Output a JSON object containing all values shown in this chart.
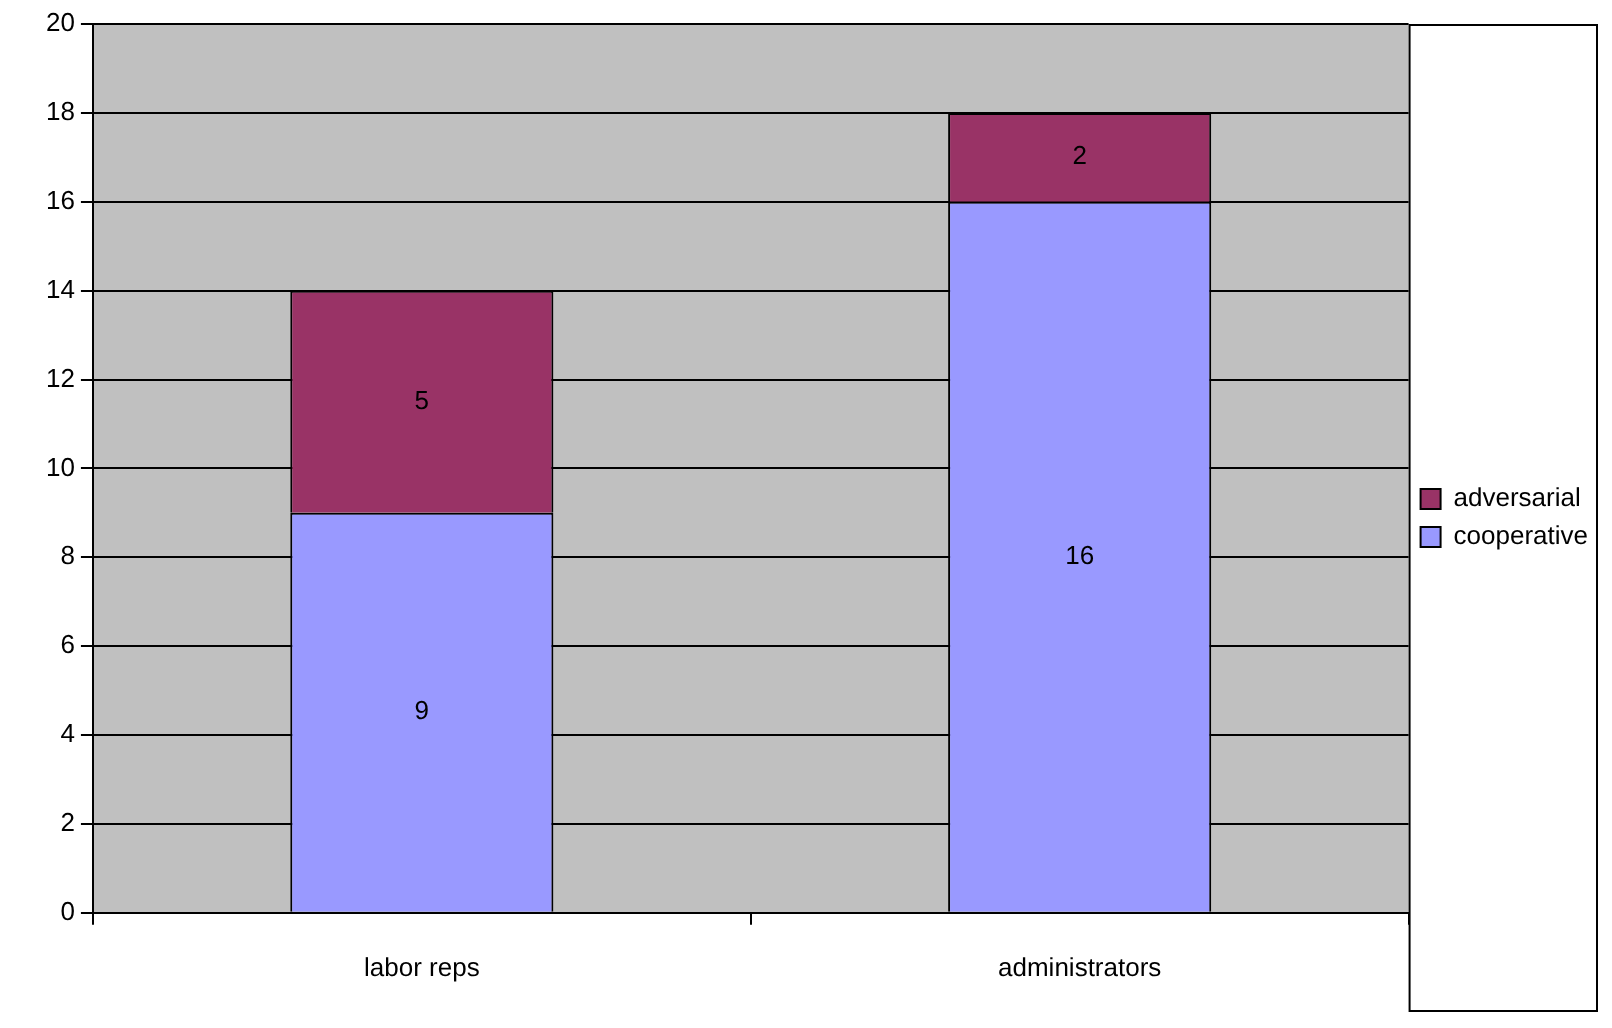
{
  "chart_data": {
    "type": "bar",
    "stacked": true,
    "categories": [
      "labor reps",
      "administrators"
    ],
    "series": [
      {
        "name": "cooperative",
        "color": "#9999ff",
        "values": [
          9,
          16
        ]
      },
      {
        "name": "adversarial",
        "color": "#993366",
        "values": [
          5,
          2
        ]
      }
    ],
    "ylim": [
      0,
      20
    ],
    "yticks": [
      0,
      2,
      4,
      6,
      8,
      10,
      12,
      14,
      16,
      18,
      20
    ],
    "grid": "y",
    "legend": "right",
    "data_labels": true
  }
}
